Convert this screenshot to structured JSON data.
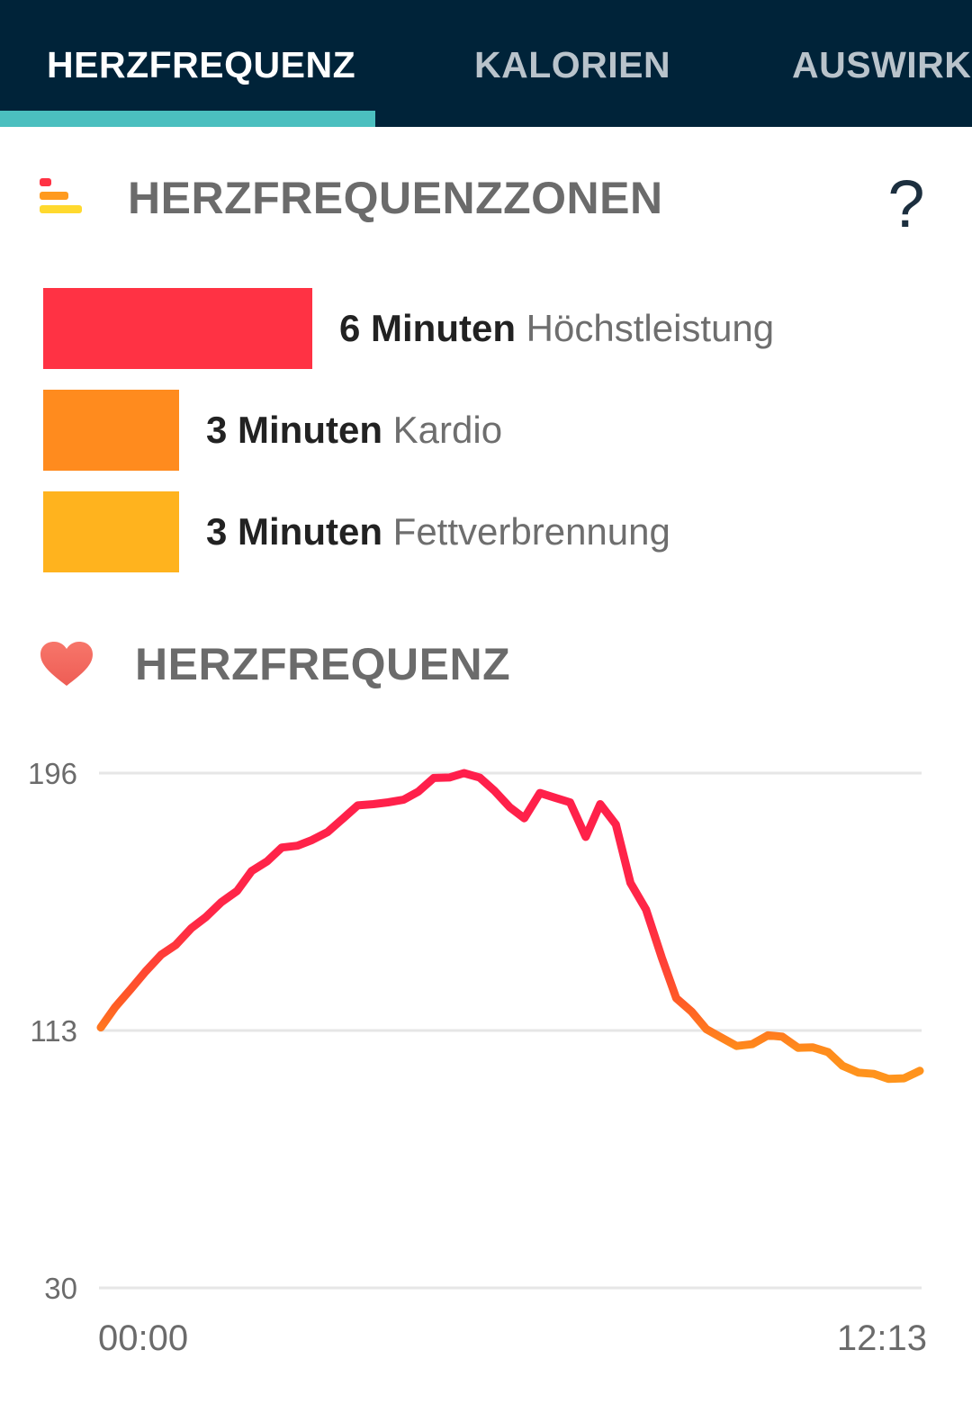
{
  "tabs": [
    {
      "label": "HERZFREQUENZ",
      "active": true
    },
    {
      "label": "KALORIEN",
      "active": false
    },
    {
      "label": "AUSWIRKUNGEN",
      "active": false
    }
  ],
  "colors": {
    "tabbar_bg": "#002339",
    "tab_indicator": "#4bbfbf",
    "peak": "#ff3244",
    "cardio": "#ff8b1e",
    "fat_burn": "#ffb31e",
    "heart": "#f36b5e"
  },
  "zones_section": {
    "title": "HERZFREQUENZZONEN",
    "icon": "heart-rate-zones-icon",
    "help_label": "?"
  },
  "zones": [
    {
      "minutes_text": "6 Minuten",
      "name": "Höchstleistung",
      "minutes": 6,
      "color": "#ff3244"
    },
    {
      "minutes_text": "3 Minuten",
      "name": "Kardio",
      "minutes": 3,
      "color": "#ff8b1e"
    },
    {
      "minutes_text": "3 Minuten",
      "name": "Fettverbrennung",
      "minutes": 3,
      "color": "#ffb31e"
    }
  ],
  "heart_section": {
    "title": "HERZFREQUENZ",
    "icon": "heart-icon"
  },
  "chart_data": {
    "type": "line",
    "title": "",
    "xlabel": "",
    "ylabel": "",
    "y_ticks": [
      "196",
      "113",
      "30"
    ],
    "ylim": [
      30,
      196
    ],
    "x_tick_labels": [
      "00:00",
      "12:13"
    ],
    "xlim": [
      "00:00",
      "12:13"
    ],
    "grid": true,
    "series": [
      {
        "x": [
          "00:00",
          "00:13",
          "00:27",
          "00:40",
          "00:54",
          "01:07",
          "01:21",
          "01:34",
          "01:48",
          "02:02",
          "02:15",
          "02:29",
          "02:42",
          "02:56",
          "03:09",
          "03:23",
          "03:37",
          "03:50",
          "04:04",
          "04:17",
          "04:31",
          "04:44",
          "04:58",
          "05:12",
          "05:25",
          "05:39",
          "05:52",
          "06:06",
          "06:19",
          "06:33",
          "06:47",
          "07:00",
          "07:14",
          "07:27",
          "07:41",
          "07:54",
          "08:08",
          "08:22",
          "08:35",
          "08:49",
          "09:02",
          "09:16",
          "09:29",
          "09:43",
          "09:57",
          "10:10",
          "10:24",
          "10:37",
          "10:51",
          "11:04",
          "11:18",
          "11:32",
          "11:45",
          "11:59",
          "12:13"
        ],
        "values": [
          114,
          120,
          127,
          132,
          138,
          140,
          146,
          149,
          155,
          158,
          165,
          167,
          172,
          172,
          175,
          177,
          182,
          185,
          186,
          186,
          188,
          190,
          195,
          194,
          196,
          194,
          191,
          185,
          182,
          189,
          188,
          186,
          176,
          186,
          180,
          160,
          152,
          136,
          124,
          119,
          114,
          110,
          108,
          108,
          112,
          111,
          108,
          107,
          106,
          101,
          100,
          99,
          98,
          97,
          100
        ],
        "color_gradient": [
          "#ff1f4b",
          "#ff3a2e",
          "#ff8c1c",
          "#ff9a1e"
        ]
      }
    ]
  }
}
